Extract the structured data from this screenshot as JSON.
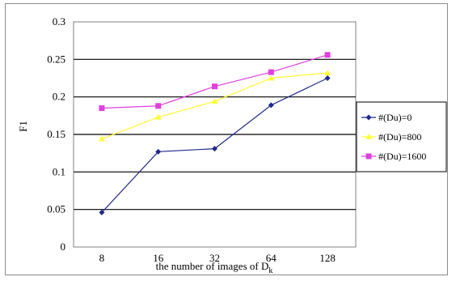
{
  "chart_data": {
    "type": "line",
    "categories": [
      "8",
      "16",
      "32",
      "64",
      "128"
    ],
    "ylabel": "F1",
    "xlabel_main": "the number of images of D",
    "xlabel_sub": "k",
    "ylim": [
      0,
      0.3
    ],
    "yticks": [
      "0",
      "0.05",
      "0.1",
      "0.15",
      "0.2",
      "0.25",
      "0.3"
    ],
    "grid": true,
    "legend_position": "right",
    "series": [
      {
        "name": "#(Du)=0",
        "values": [
          0.046,
          0.127,
          0.131,
          0.189,
          0.225
        ],
        "color": "#1f2a8c",
        "marker": "diamond"
      },
      {
        "name": "#(Du)=800",
        "values": [
          0.144,
          0.173,
          0.194,
          0.225,
          0.232
        ],
        "color": "#ffff33",
        "marker": "triangle"
      },
      {
        "name": "#(Du)=1600",
        "values": [
          0.185,
          0.188,
          0.214,
          0.233,
          0.256
        ],
        "color": "#e040e0",
        "marker": "square"
      }
    ]
  }
}
